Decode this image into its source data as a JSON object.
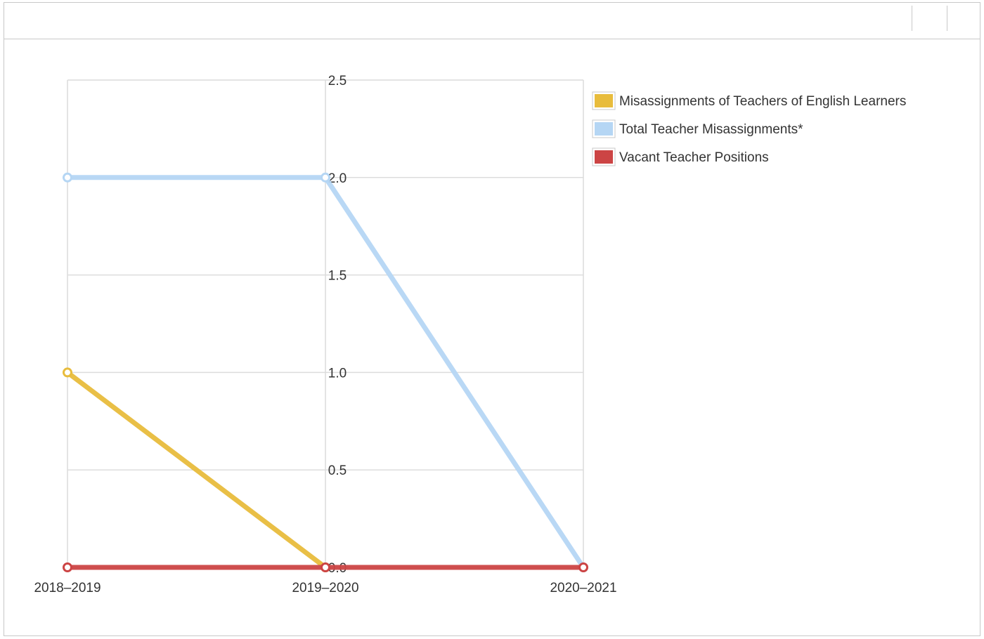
{
  "chart_data": {
    "type": "line",
    "categories": [
      "2018–2019",
      "2019–2020",
      "2020–2021"
    ],
    "y_ticks": [
      "0.0",
      "0.5",
      "1.0",
      "1.5",
      "2.0",
      "2.5"
    ],
    "ylim": [
      0,
      2.5
    ],
    "grid": true,
    "legend_position": "right",
    "series": [
      {
        "name": "Misassignments of Teachers of English Learners",
        "color": "#e8bc3c",
        "values": [
          1,
          0,
          null
        ]
      },
      {
        "name": "Total Teacher Misassignments*",
        "color": "#b5d6f4",
        "values": [
          2,
          2,
          0
        ]
      },
      {
        "name": "Vacant Teacher Positions",
        "color": "#cc4444",
        "values": [
          0,
          0,
          0
        ]
      }
    ]
  }
}
